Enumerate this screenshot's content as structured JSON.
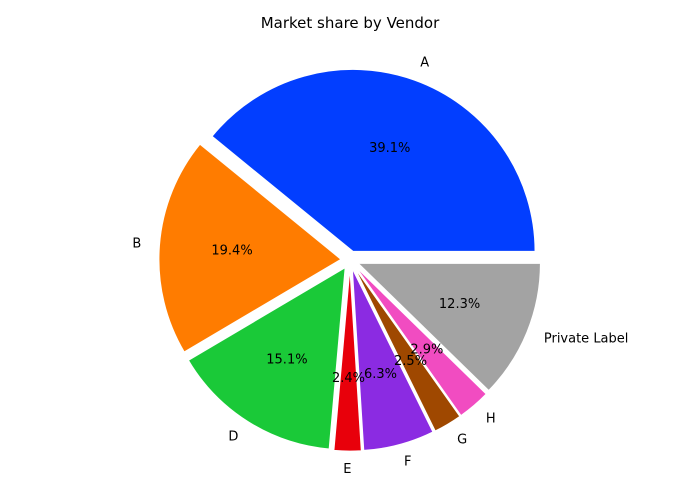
{
  "chart_data": {
    "type": "pie",
    "title": "Market share by Vendor",
    "slices": [
      {
        "label": "A",
        "value": 39.1,
        "pct_text": "39.1%",
        "color": "#023eff"
      },
      {
        "label": "B",
        "value": 19.4,
        "pct_text": "19.4%",
        "color": "#ff7c00"
      },
      {
        "label": "D",
        "value": 15.1,
        "pct_text": "15.1%",
        "color": "#1ac938"
      },
      {
        "label": "E",
        "value": 2.4,
        "pct_text": "2.4%",
        "color": "#e8000b"
      },
      {
        "label": "F",
        "value": 6.3,
        "pct_text": "6.3%",
        "color": "#8b2be2"
      },
      {
        "label": "G",
        "value": 2.5,
        "pct_text": "2.5%",
        "color": "#9f4800"
      },
      {
        "label": "H",
        "value": 2.9,
        "pct_text": "2.9%",
        "color": "#f14cc1"
      },
      {
        "label": "Private Label",
        "value": 12.3,
        "pct_text": "12.3%",
        "color": "#a3a3a3"
      }
    ],
    "start_angle": "0° (3 o'clock), counter-clockwise",
    "legend": "none",
    "explode": "all slices slightly separated"
  }
}
